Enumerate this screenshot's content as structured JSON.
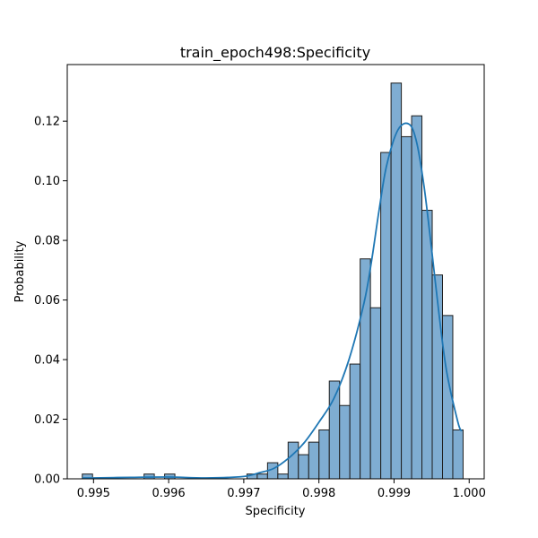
{
  "chart_data": {
    "type": "bar",
    "subtype": "histogram-with-kde",
    "title": "train_epoch498:Specificity",
    "xlabel": "Specificity",
    "ylabel": "Probability",
    "xlim": [
      0.99465,
      1.0002
    ],
    "ylim": [
      0,
      0.139
    ],
    "xticks": [
      0.995,
      0.996,
      0.997,
      0.998,
      0.999,
      1.0
    ],
    "xtick_labels": [
      "0.995",
      "0.996",
      "0.997",
      "0.998",
      "0.999",
      "1.000"
    ],
    "yticks": [
      0.0,
      0.02,
      0.04,
      0.06,
      0.08,
      0.1,
      0.12
    ],
    "ytick_labels": [
      "0.00",
      "0.02",
      "0.04",
      "0.06",
      "0.08",
      "0.10",
      "0.12"
    ],
    "bin_start": 0.99485,
    "bin_width": 0.000137,
    "values": [
      0.0016,
      0,
      0,
      0,
      0,
      0,
      0.0016,
      0,
      0.0016,
      0,
      0,
      0,
      0,
      0,
      0,
      0,
      0.0016,
      0.0016,
      0.0054,
      0.0016,
      0.0123,
      0.0081,
      0.0123,
      0.0164,
      0.0328,
      0.0246,
      0.0385,
      0.0738,
      0.0574,
      0.1095,
      0.1328,
      0.1148,
      0.1218,
      0.0901,
      0.0684,
      0.0548,
      0.0164
    ],
    "kde": {
      "x": [
        0.99485,
        0.995,
        0.9955,
        0.996,
        0.9965,
        0.997,
        0.9972,
        0.9974,
        0.9976,
        0.9978,
        0.998,
        0.9982,
        0.9984,
        0.9986,
        0.9987,
        0.9988,
        0.9989,
        0.99905,
        0.9992,
        0.9993,
        0.9994,
        0.9995,
        0.9996,
        0.9997,
        0.99985,
        0.9999
      ],
      "y": [
        0.0003,
        0.0003,
        0.0005,
        0.0006,
        0.0003,
        0.0008,
        0.002,
        0.0035,
        0.007,
        0.012,
        0.019,
        0.027,
        0.04,
        0.059,
        0.073,
        0.09,
        0.105,
        0.117,
        0.119,
        0.113,
        0.098,
        0.077,
        0.055,
        0.036,
        0.019,
        0.016
      ]
    },
    "colors": {
      "bar_fill": "#7fadd2",
      "bar_edge": "#1f1f1f",
      "kde_line": "#1f77b4"
    },
    "grid": false,
    "legend": "none"
  }
}
